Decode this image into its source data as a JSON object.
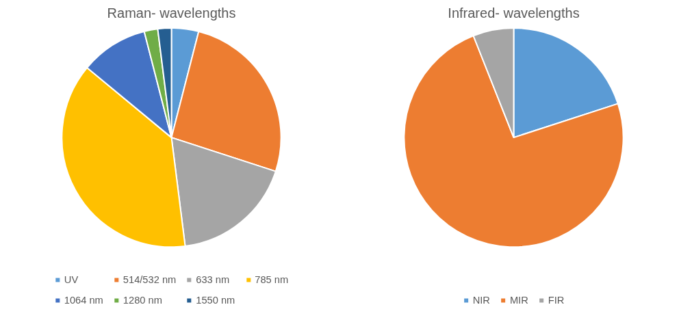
{
  "chart_data": [
    {
      "type": "pie",
      "title": "Raman- wavelengths",
      "categories": [
        "UV",
        "514/532 nm",
        "633 nm",
        "785 nm",
        "1064 nm",
        "1280 nm",
        "1550 nm"
      ],
      "values": [
        4,
        26,
        18,
        38,
        10,
        2,
        2
      ],
      "colors": [
        "#5b9bd5",
        "#ed7d31",
        "#a5a5a5",
        "#ffc000",
        "#4472c4",
        "#70ad47",
        "#255e91"
      ],
      "legend": "bottom"
    },
    {
      "type": "pie",
      "title": "Infrared- wavelengths",
      "categories": [
        "NIR",
        "MIR",
        "FIR"
      ],
      "values": [
        20,
        74,
        6
      ],
      "colors": [
        "#5b9bd5",
        "#ed7d31",
        "#a5a5a5"
      ],
      "legend": "bottom"
    }
  ]
}
